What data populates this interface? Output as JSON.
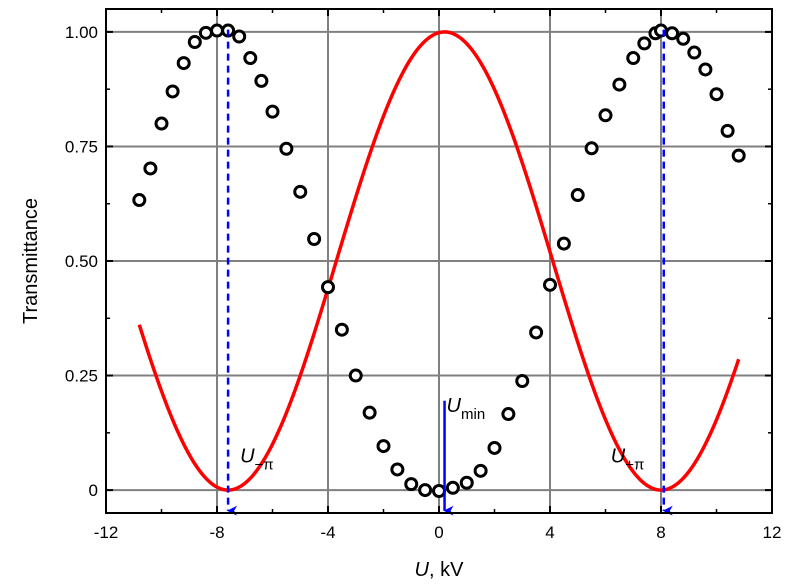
{
  "chart_data": {
    "type": "scatter",
    "xlabel": {
      "italic": "U",
      "rest": ", kV"
    },
    "ylabel": "Transmittance",
    "xlim": [
      -12,
      12
    ],
    "ylim": [
      -0.05,
      1.05
    ],
    "xticks": [
      -12,
      -8,
      -4,
      0,
      4,
      8,
      12
    ],
    "xtick_labels": [
      "-12",
      "-8",
      "-4",
      "0",
      "4",
      "8",
      "12"
    ],
    "yticks": [
      0,
      0.25,
      0.5,
      0.75,
      1.0
    ],
    "ytick_labels": [
      "0",
      "0.25",
      "0.50",
      "0.75",
      "1.00"
    ],
    "grid": true,
    "series": [
      {
        "kind": "points",
        "x": [
          -10.8,
          -10.4,
          -10.0,
          -9.6,
          -9.2,
          -8.8,
          -8.4,
          -8.0,
          -7.6,
          -7.2,
          -6.8,
          -6.4,
          -6.0,
          -5.5,
          -5.0,
          -4.5,
          -4.0,
          -3.5,
          -3.0,
          -2.5,
          -2.0,
          -1.5,
          -1.0,
          -0.5,
          0.0,
          0.5,
          1.0,
          1.5,
          2.0,
          2.5,
          3.0,
          3.5,
          4.0,
          4.5,
          5.0,
          5.5,
          6.0,
          6.5,
          7.0,
          7.4,
          7.8,
          8.0,
          8.4,
          8.8,
          9.2,
          9.6,
          10.0,
          10.4,
          10.8
        ],
        "y": [
          0.633,
          0.702,
          0.8,
          0.87,
          0.932,
          0.978,
          0.998,
          1.003,
          1.003,
          0.99,
          0.943,
          0.893,
          0.826,
          0.745,
          0.651,
          0.548,
          0.443,
          0.35,
          0.25,
          0.169,
          0.096,
          0.045,
          0.013,
          0.0,
          -0.002,
          0.005,
          0.016,
          0.042,
          0.092,
          0.166,
          0.238,
          0.344,
          0.448,
          0.538,
          0.644,
          0.746,
          0.818,
          0.885,
          0.943,
          0.975,
          0.997,
          1.003,
          0.997,
          0.985,
          0.955,
          0.918,
          0.864,
          0.784,
          0.73
        ],
        "marker": "open-circle",
        "color": "#000000"
      },
      {
        "kind": "fit",
        "model": "T = cos^2(pi*(U - U0)/(2*Upi))",
        "params": {
          "U0": 0.2,
          "Upi": 7.8
        },
        "x_range": [
          -10.8,
          10.8
        ],
        "color": "#ff0000"
      }
    ],
    "annotations": [
      {
        "main": "U",
        "sub": "−π",
        "x": -7.6,
        "style": "dashed-arrow",
        "color": "#0000ff"
      },
      {
        "main": "U",
        "sub": "min",
        "x": 0.2,
        "style": "solid-arrow",
        "color": "#0000ff"
      },
      {
        "main": "U",
        "sub": "+π",
        "x": 8.1,
        "style": "dashed-arrow",
        "color": "#0000ff"
      }
    ]
  }
}
